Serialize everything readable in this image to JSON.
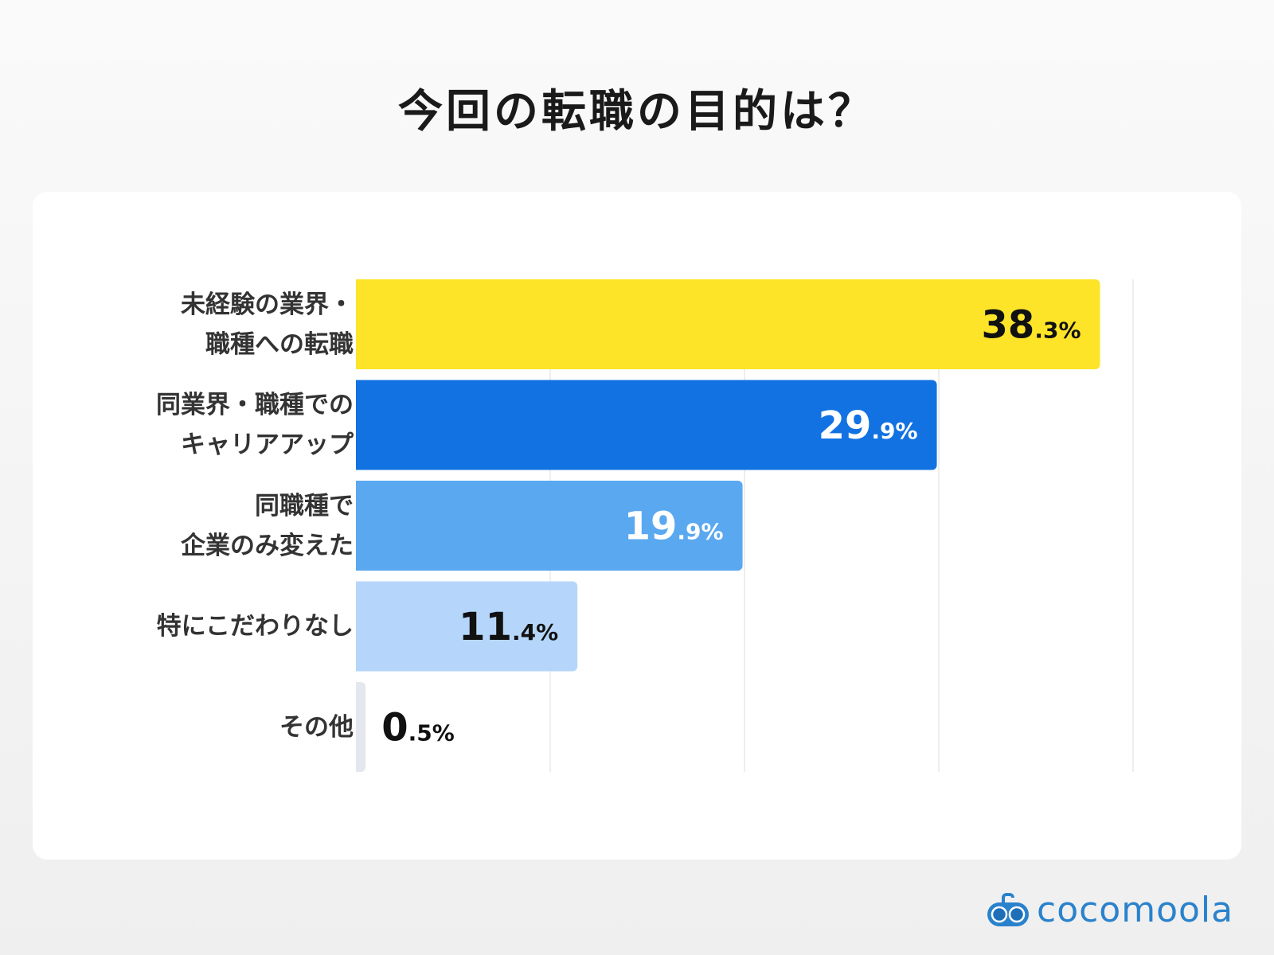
{
  "chart_data": {
    "type": "bar",
    "orientation": "horizontal",
    "title": "今回の転職の目的は？",
    "categories": [
      "未経験の業界・\n職種への転職",
      "同業界・職種での\nキャリアアップ",
      "同職種で\n企業のみ変えた",
      "特にこだわりなし",
      "その他"
    ],
    "values": [
      38.3,
      29.9,
      19.9,
      11.4,
      0.5
    ],
    "value_labels": [
      {
        "int": "38",
        "dec": ".3%"
      },
      {
        "int": "29",
        "dec": ".9%"
      },
      {
        "int": "19",
        "dec": ".9%"
      },
      {
        "int": "11",
        "dec": ".4%"
      },
      {
        "int": "0",
        "dec": ".5%"
      }
    ],
    "colors": [
      "#fde428",
      "#1272e2",
      "#5aa8f0",
      "#b5d6fa",
      "#e4e8ee"
    ],
    "label_colors": [
      "#111111",
      "#ffffff",
      "#ffffff",
      "#111111",
      "#111111"
    ],
    "xlim": [
      0,
      40
    ],
    "grid": true,
    "grid_step": 10
  },
  "logo": {
    "text": "cocomoola",
    "color": "#2a82cc"
  }
}
